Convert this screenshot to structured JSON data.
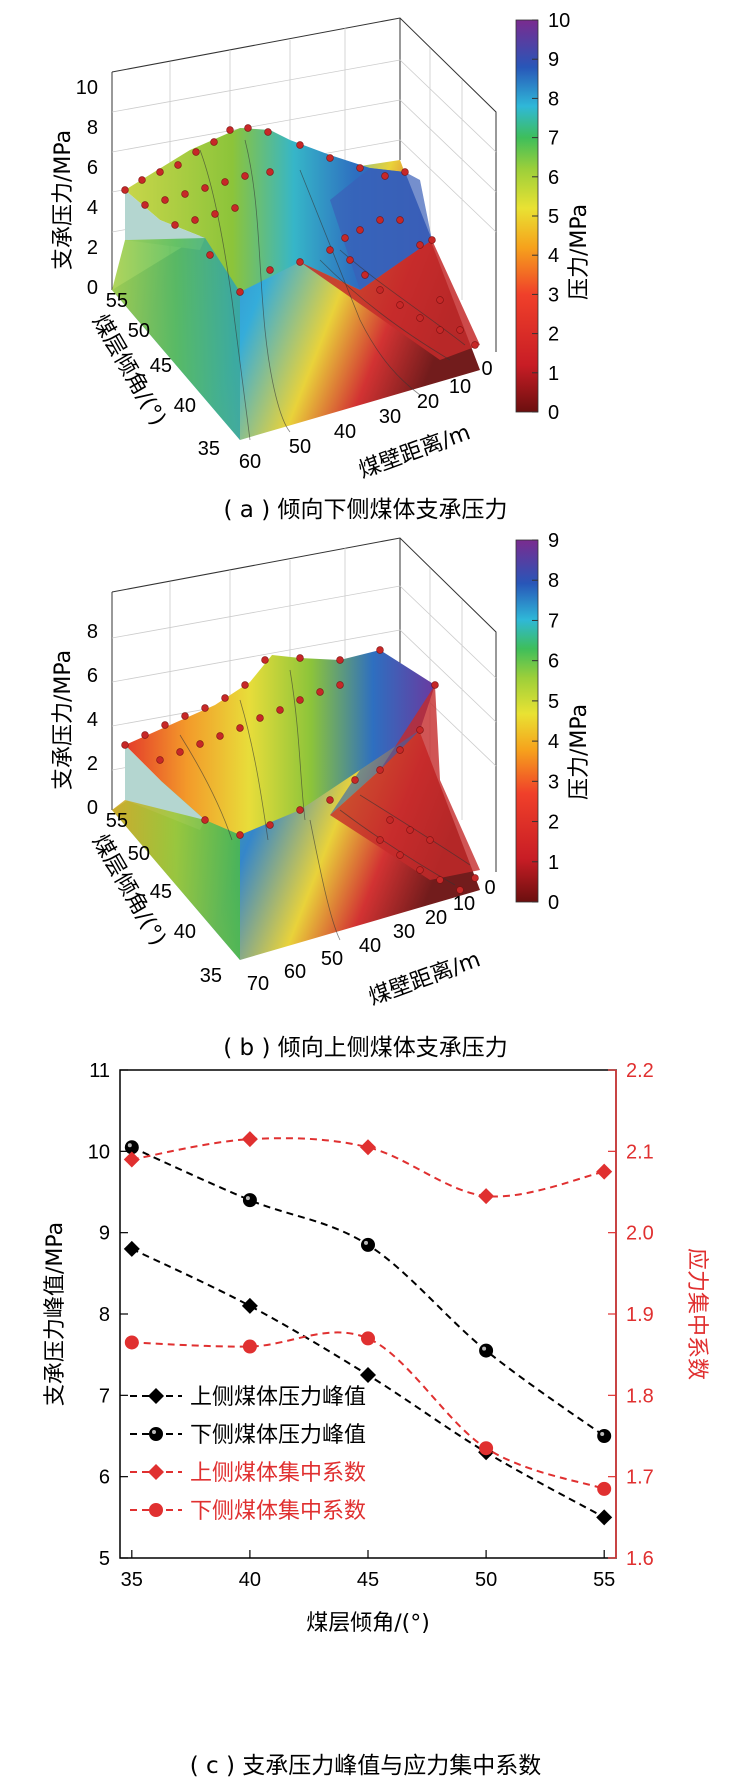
{
  "panel_a": {
    "caption": "( a ) 倾向下侧煤体支承压力",
    "zlabel": "支承压力/MPa",
    "xlabel": "煤壁距离/m",
    "ylabel": "煤层倾角/(°)",
    "colorbar_label": "压力/MPa",
    "z_ticks": [
      "0",
      "2",
      "4",
      "6",
      "8",
      "10"
    ],
    "y_ticks": [
      "55",
      "50",
      "45",
      "40",
      "35"
    ],
    "x_ticks": [
      "60",
      "50",
      "40",
      "30",
      "20",
      "10",
      "0"
    ],
    "colorbar_ticks": [
      "0",
      "1",
      "2",
      "3",
      "4",
      "5",
      "6",
      "7",
      "8",
      "9",
      "10"
    ]
  },
  "panel_b": {
    "caption": "( b ) 倾向上侧煤体支承压力",
    "zlabel": "支承压力/MPa",
    "xlabel": "煤壁距离/m",
    "ylabel": "煤层倾角/(°)",
    "colorbar_label": "压力/MPa",
    "z_ticks": [
      "0",
      "2",
      "4",
      "6",
      "8"
    ],
    "y_ticks": [
      "55",
      "50",
      "45",
      "40",
      "35"
    ],
    "x_ticks": [
      "70",
      "60",
      "50",
      "40",
      "30",
      "20",
      "10",
      "0"
    ],
    "colorbar_ticks": [
      "0",
      "1",
      "2",
      "3",
      "4",
      "5",
      "6",
      "7",
      "8",
      "9"
    ]
  },
  "panel_c": {
    "caption": "( c ) 支承压力峰值与应力集中系数",
    "xlabel": "煤层倾角/(°)",
    "ylabel_left": "支承压力峰值/MPa",
    "ylabel_right": "应力集中系数",
    "x_ticks": [
      "35",
      "40",
      "45",
      "50",
      "55"
    ],
    "y_left_ticks": [
      "5",
      "6",
      "7",
      "8",
      "9",
      "10",
      "11"
    ],
    "y_right_ticks": [
      "1.6",
      "1.7",
      "1.8",
      "1.9",
      "2.0",
      "2.1",
      "2.2"
    ],
    "colors": {
      "black": "#000000",
      "red": "#e03030"
    }
  },
  "chart_data": [
    {
      "type": "line",
      "x": [
        35,
        40,
        45,
        50,
        55
      ],
      "xlabel": "煤层倾角/(°)",
      "ylabel": "支承压力峰值/MPa",
      "ylim": [
        5,
        11
      ],
      "y2label": "应力集中系数",
      "y2lim": [
        1.6,
        2.2
      ],
      "legend": "bottom-left",
      "series": [
        {
          "name": "上侧煤体压力峰值",
          "axis": "left",
          "marker": "diamond",
          "color": "#000000",
          "values": [
            8.8,
            8.1,
            7.25,
            6.3,
            5.5
          ]
        },
        {
          "name": "下侧煤体压力峰值",
          "axis": "left",
          "marker": "circle",
          "color": "#000000",
          "values": [
            10.05,
            9.4,
            8.85,
            7.55,
            6.5
          ]
        },
        {
          "name": "上侧煤体集中系数",
          "axis": "right",
          "marker": "diamond",
          "color": "#e03030",
          "values": [
            2.09,
            2.115,
            2.105,
            2.045,
            2.075
          ]
        },
        {
          "name": "下侧煤体集中系数",
          "axis": "right",
          "marker": "circle",
          "color": "#e03030",
          "values": [
            1.865,
            1.86,
            1.87,
            1.735,
            1.685
          ]
        }
      ]
    }
  ]
}
